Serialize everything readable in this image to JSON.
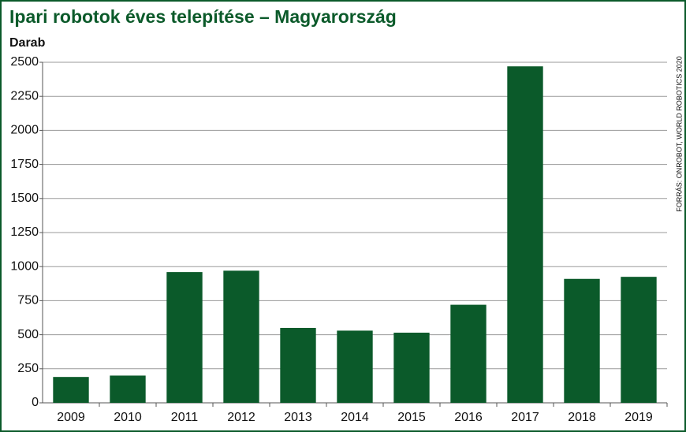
{
  "chart_data": {
    "type": "bar",
    "title": "Ipari robotok éves telepítése – Magyarország",
    "y_label": "Darab",
    "source": "FORRÁS: ONROBOT, WORLD ROBOTICS 2020",
    "categories": [
      "2009",
      "2010",
      "2011",
      "2012",
      "2013",
      "2014",
      "2015",
      "2016",
      "2017",
      "2018",
      "2019"
    ],
    "values": [
      190,
      200,
      960,
      970,
      550,
      530,
      515,
      720,
      2470,
      910,
      925
    ],
    "color": "#0b5a2a",
    "ylim": [
      0,
      2500
    ],
    "yticks": [
      0,
      250,
      500,
      750,
      1000,
      1250,
      1500,
      1750,
      2000,
      2250,
      2500
    ],
    "grid": true
  }
}
